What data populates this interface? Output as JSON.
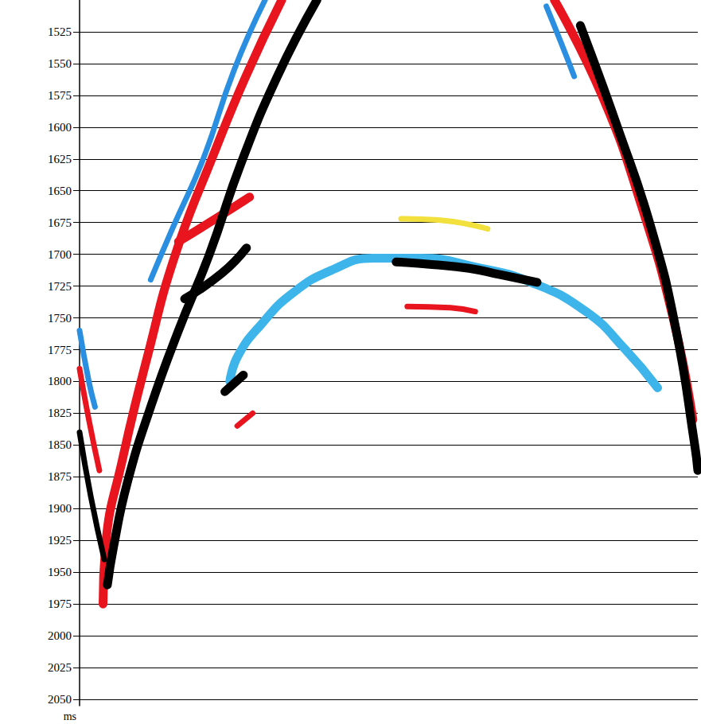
{
  "chart_data": {
    "type": "line",
    "ylabel": "ms",
    "xlim": [
      0,
      100
    ],
    "ylim": [
      2055,
      1500
    ],
    "yticks": [
      1525,
      1550,
      1575,
      1600,
      1625,
      1650,
      1675,
      1700,
      1725,
      1750,
      1775,
      1800,
      1825,
      1850,
      1875,
      1900,
      1925,
      1950,
      1975,
      2000,
      2025,
      2050
    ],
    "grid": true,
    "tick_labels": "y",
    "series": [
      {
        "color": "#2a8fe0",
        "line_style": "medium",
        "x": [
          30.0,
          25.0,
          20.0,
          15.0,
          11.5
        ],
        "values": [
          1500,
          1555,
          1625,
          1680,
          1720
        ]
      },
      {
        "color": "#2a8fe0",
        "line_style": "medium",
        "x": [
          75.5,
          78.0,
          80.0
        ],
        "values": [
          1505,
          1535,
          1560
        ]
      },
      {
        "color": "#2a8fe0",
        "line_style": "medium",
        "x": [
          0,
          1.5,
          2.5
        ],
        "values": [
          1760,
          1800,
          1820
        ]
      },
      {
        "color": "#3db4ea",
        "line_style": "thick",
        "x": [
          24.3,
          25.6,
          29.4,
          34.6,
          41.0,
          47.4,
          55.1,
          64.0,
          73.0,
          81.9,
          88.3,
          93.5
        ],
        "values": [
          1800,
          1780,
          1755,
          1730,
          1712,
          1703,
          1703,
          1710,
          1722,
          1745,
          1775,
          1805
        ]
      },
      {
        "color": "#f2e03c",
        "line_style": "medium",
        "x": [
          52.0,
          58.0,
          66.0
        ],
        "values": [
          1672,
          1673,
          1680
        ]
      },
      {
        "color": "#e8141e",
        "line_style": "thick",
        "x": [
          32.7,
          26.9,
          21.8,
          15.5,
          11.0,
          7.0,
          4.2,
          3.8
        ],
        "values": [
          1500,
          1560,
          1620,
          1700,
          1780,
          1860,
          1930,
          1975
        ]
      },
      {
        "color": "#e8141e",
        "line_style": "thick",
        "x": [
          16.0,
          22.0,
          27.5
        ],
        "values": [
          1690,
          1672,
          1655
        ]
      },
      {
        "color": "#e8141e",
        "line_style": "medium",
        "x": [
          0,
          1.5,
          3.2
        ],
        "values": [
          1790,
          1830,
          1870
        ]
      },
      {
        "color": "#e8141e",
        "line_style": "thick",
        "x": [
          76.8,
          84.5,
          90.9,
          96.0,
          99.2
        ],
        "values": [
          1500,
          1575,
          1662,
          1750,
          1830
        ]
      },
      {
        "color": "#e8141e",
        "line_style": "medium",
        "x": [
          53.0,
          60.0,
          64.0
        ],
        "values": [
          1741,
          1742,
          1745
        ]
      },
      {
        "color": "#e8141e",
        "line_style": "medium",
        "x": [
          25.5,
          28.0
        ],
        "values": [
          1835,
          1825
        ]
      },
      {
        "color": "#000000",
        "line_style": "thick",
        "x": [
          38.4,
          32.0,
          26.0,
          21.0,
          16.0,
          11.5,
          7.7,
          5.5,
          4.5
        ],
        "values": [
          1500,
          1560,
          1630,
          1700,
          1760,
          1820,
          1880,
          1930,
          1960
        ]
      },
      {
        "color": "#000000",
        "line_style": "thick",
        "x": [
          17.0,
          23.0,
          27.0
        ],
        "values": [
          1735,
          1715,
          1695
        ]
      },
      {
        "color": "#000000",
        "line_style": "medium",
        "x": [
          0,
          1.8,
          4.0
        ],
        "values": [
          1840,
          1890,
          1940
        ]
      },
      {
        "color": "#000000",
        "line_style": "thick",
        "x": [
          81.0,
          87.0,
          92.5,
          96.5,
          99.5,
          100
        ],
        "values": [
          1520,
          1600,
          1680,
          1760,
          1850,
          1870
        ]
      },
      {
        "color": "#000000",
        "line_style": "thick",
        "x": [
          51.2,
          57.0,
          63.0,
          68.0,
          74.0
        ],
        "values": [
          1706,
          1708,
          1711,
          1716,
          1722
        ]
      },
      {
        "color": "#000000",
        "line_style": "thick",
        "x": [
          23.5,
          26.5
        ],
        "values": [
          1808,
          1795
        ]
      }
    ]
  }
}
